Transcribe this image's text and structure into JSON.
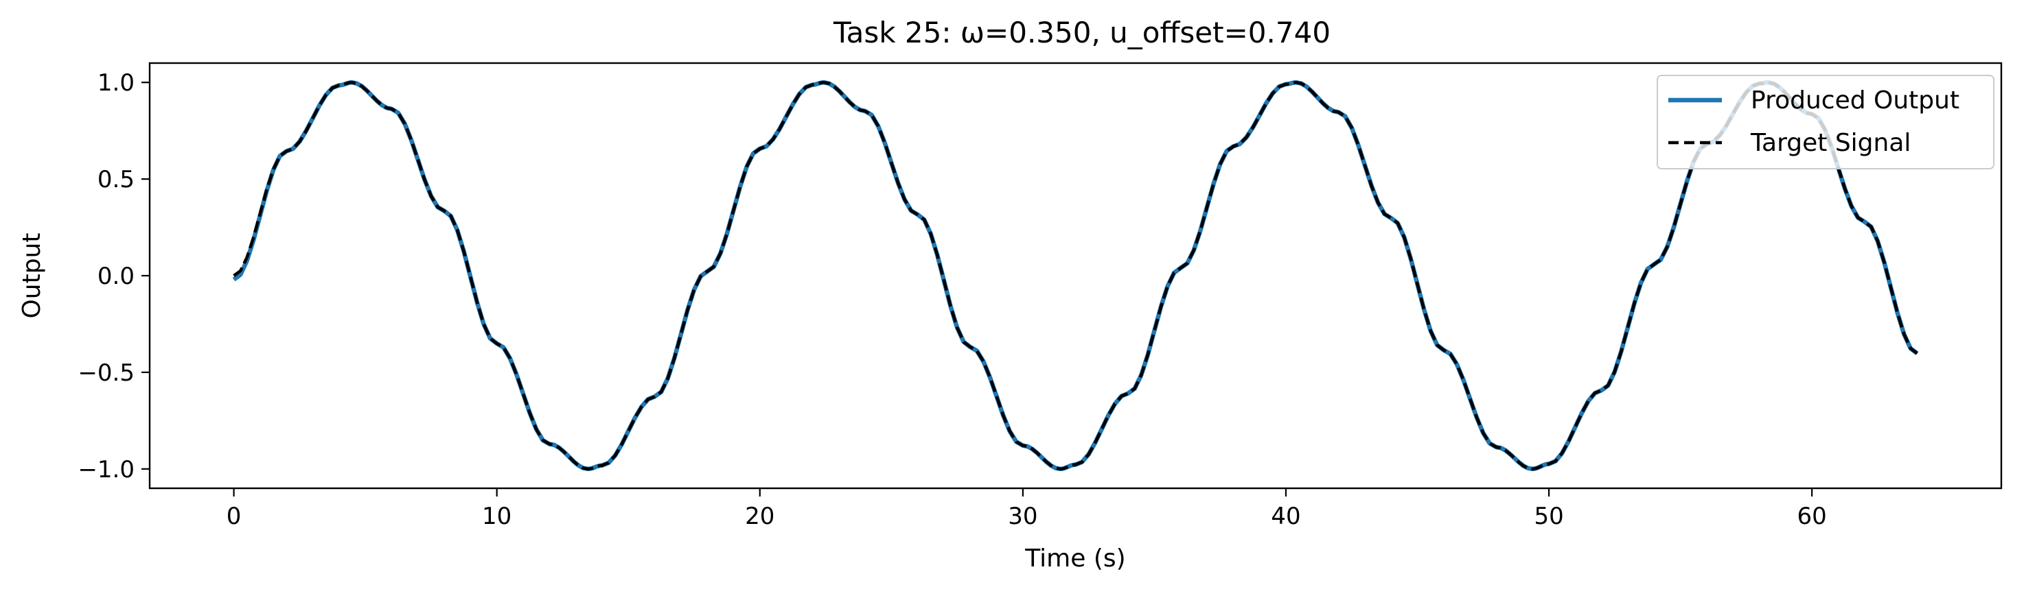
{
  "chart_data": {
    "type": "line",
    "title": "Task 25: ω=0.350, u_offset=0.740",
    "xlabel": "Time (s)",
    "ylabel": "Output",
    "xlim": [
      -3.2,
      67.2
    ],
    "ylim": [
      -1.1,
      1.1
    ],
    "xticks": [
      0,
      10,
      20,
      30,
      40,
      50,
      60
    ],
    "yticks": [
      -1.0,
      -0.5,
      0.0,
      0.5,
      1.0
    ],
    "xtick_labels": [
      "0",
      "10",
      "20",
      "30",
      "40",
      "50",
      "60"
    ],
    "ytick_labels": [
      "−1.0",
      "−0.5",
      "0.0",
      "0.5",
      "1.0"
    ],
    "grid": false,
    "legend_position": "upper right",
    "x": [
      0,
      2,
      4,
      4.49,
      6,
      8,
      10,
      12,
      13.46,
      14,
      16,
      18,
      20,
      22,
      22.44,
      24,
      26,
      28,
      30,
      31.42,
      32,
      34,
      36,
      38,
      40,
      40.39,
      42,
      44,
      46,
      48,
      49.37,
      50,
      52,
      54,
      56,
      58,
      58.34,
      60,
      62,
      64
    ],
    "series": [
      {
        "name": "Produced Output",
        "color": "#1f77b4",
        "style": "solid",
        "values": [
          -0.02,
          0.644,
          0.985,
          1.0,
          0.863,
          0.335,
          -0.351,
          -0.871,
          -1.0,
          -0.982,
          -0.626,
          0.022,
          0.657,
          0.988,
          1.0,
          0.852,
          0.316,
          -0.369,
          -0.879,
          -1.0,
          -0.978,
          -0.609,
          0.04,
          0.669,
          0.991,
          1.0,
          0.846,
          0.298,
          -0.385,
          -0.887,
          -1.0,
          -0.974,
          -0.593,
          0.059,
          0.681,
          0.994,
          1.0,
          0.836,
          0.279,
          -0.402
        ]
      },
      {
        "name": "Target Signal",
        "color": "#000000",
        "style": "dashed",
        "values": [
          0.0,
          0.644,
          0.985,
          1.0,
          0.863,
          0.335,
          -0.351,
          -0.871,
          -1.0,
          -0.982,
          -0.626,
          0.022,
          0.657,
          0.988,
          1.0,
          0.852,
          0.316,
          -0.369,
          -0.879,
          -1.0,
          -0.978,
          -0.609,
          0.04,
          0.669,
          0.991,
          1.0,
          0.846,
          0.298,
          -0.385,
          -0.887,
          -1.0,
          -0.974,
          -0.593,
          0.059,
          0.681,
          0.994,
          1.0,
          0.836,
          0.279,
          -0.402
        ]
      }
    ]
  }
}
